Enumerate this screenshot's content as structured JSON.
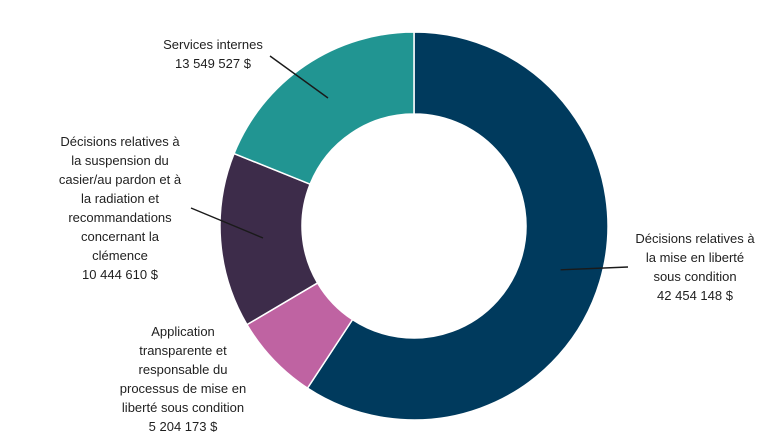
{
  "chart_data": {
    "type": "donut",
    "currency_suffix": " $",
    "slices": [
      {
        "label_lines": [
          "Décisions relatives à",
          "la mise en liberté",
          "sous condition"
        ],
        "value_text": "42 454 148 $",
        "value": 42454148,
        "color": "#003a5d"
      },
      {
        "label_lines": [
          "Application",
          "transparente et",
          "responsable du",
          "processus de mise en",
          "liberté sous condition"
        ],
        "value_text": "5 204 173 $",
        "value": 5204173,
        "color": "#bf63a2"
      },
      {
        "label_lines": [
          "Décisions relatives à",
          "la suspension du",
          "casier/au pardon et à",
          "la radiation et",
          "recommandations",
          "concernant la",
          "clémence"
        ],
        "value_text": "10 444 610 $",
        "value": 10444610,
        "color": "#3d2c4a"
      },
      {
        "label_lines": [
          "Services internes"
        ],
        "value_text": "13 549 527 $",
        "value": 13549527,
        "color": "#219592"
      }
    ]
  }
}
